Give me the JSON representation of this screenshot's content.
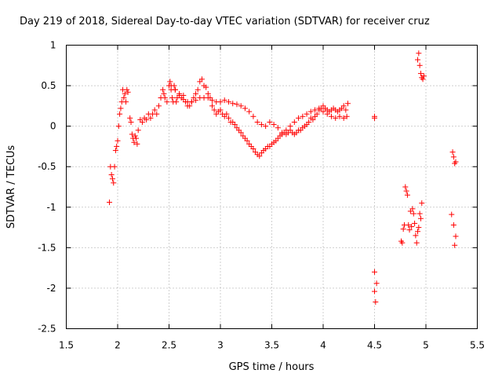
{
  "chart_data": {
    "type": "scatter",
    "title": "Day 219 of 2018, Sidereal Day-to-day VTEC variation (SDTVAR) for receiver cruz",
    "xlabel": "GPS time / hours",
    "ylabel": "SDTVAR / TECUs",
    "xlim": [
      1.5,
      5.5
    ],
    "ylim": [
      -2.5,
      1
    ],
    "xticks": [
      "1.5",
      "2",
      "2.5",
      "3",
      "3.5",
      "4",
      "4.5",
      "5",
      "5.5"
    ],
    "yticks": [
      "1",
      "0.5",
      "0",
      "-0.5",
      "-1",
      "-1.5",
      "-2",
      "-2.5"
    ],
    "grid": true,
    "marker": "+",
    "color": "#ff0000",
    "series": [
      {
        "name": "cruz",
        "points": [
          [
            1.92,
            -0.94
          ],
          [
            1.93,
            -0.5
          ],
          [
            1.94,
            -0.6
          ],
          [
            1.95,
            -0.65
          ],
          [
            1.96,
            -0.7
          ],
          [
            1.97,
            -0.5
          ],
          [
            1.98,
            -0.3
          ],
          [
            1.99,
            -0.25
          ],
          [
            2.0,
            -0.18
          ],
          [
            2.01,
            0.0
          ],
          [
            2.02,
            0.15
          ],
          [
            2.03,
            0.22
          ],
          [
            2.04,
            0.3
          ],
          [
            2.05,
            0.45
          ],
          [
            2.06,
            0.35
          ],
          [
            2.07,
            0.4
          ],
          [
            2.08,
            0.3
          ],
          [
            2.09,
            0.45
          ],
          [
            2.1,
            0.42
          ],
          [
            2.12,
            0.1
          ],
          [
            2.13,
            0.05
          ],
          [
            2.14,
            -0.1
          ],
          [
            2.15,
            -0.15
          ],
          [
            2.16,
            -0.2
          ],
          [
            2.17,
            -0.12
          ],
          [
            2.18,
            -0.15
          ],
          [
            2.19,
            -0.22
          ],
          [
            2.2,
            -0.05
          ],
          [
            2.22,
            0.08
          ],
          [
            2.24,
            0.05
          ],
          [
            2.26,
            0.1
          ],
          [
            2.28,
            0.08
          ],
          [
            2.3,
            0.15
          ],
          [
            2.32,
            0.1
          ],
          [
            2.34,
            0.15
          ],
          [
            2.36,
            0.2
          ],
          [
            2.38,
            0.15
          ],
          [
            2.4,
            0.25
          ],
          [
            2.42,
            0.35
          ],
          [
            2.44,
            0.45
          ],
          [
            2.45,
            0.4
          ],
          [
            2.46,
            0.35
          ],
          [
            2.48,
            0.3
          ],
          [
            2.5,
            0.5
          ],
          [
            2.51,
            0.55
          ],
          [
            2.52,
            0.45
          ],
          [
            2.53,
            0.35
          ],
          [
            2.54,
            0.3
          ],
          [
            2.55,
            0.5
          ],
          [
            2.56,
            0.45
          ],
          [
            2.57,
            0.3
          ],
          [
            2.58,
            0.35
          ],
          [
            2.6,
            0.4
          ],
          [
            2.62,
            0.35
          ],
          [
            2.64,
            0.38
          ],
          [
            2.66,
            0.3
          ],
          [
            2.68,
            0.25
          ],
          [
            2.7,
            0.25
          ],
          [
            2.72,
            0.3
          ],
          [
            2.74,
            0.35
          ],
          [
            2.76,
            0.4
          ],
          [
            2.78,
            0.45
          ],
          [
            2.8,
            0.55
          ],
          [
            2.82,
            0.58
          ],
          [
            2.84,
            0.5
          ],
          [
            2.86,
            0.48
          ],
          [
            2.88,
            0.4
          ],
          [
            2.9,
            0.35
          ],
          [
            2.92,
            0.25
          ],
          [
            2.94,
            0.2
          ],
          [
            2.96,
            0.15
          ],
          [
            2.98,
            0.18
          ],
          [
            3.0,
            0.2
          ],
          [
            3.02,
            0.15
          ],
          [
            3.04,
            0.12
          ],
          [
            3.06,
            0.15
          ],
          [
            3.08,
            0.1
          ],
          [
            3.1,
            0.05
          ],
          [
            3.12,
            0.05
          ],
          [
            3.14,
            0.02
          ],
          [
            3.16,
            -0.02
          ],
          [
            3.18,
            -0.05
          ],
          [
            3.2,
            -0.08
          ],
          [
            3.22,
            -0.12
          ],
          [
            3.24,
            -0.15
          ],
          [
            3.26,
            -0.18
          ],
          [
            3.28,
            -0.22
          ],
          [
            3.3,
            -0.25
          ],
          [
            3.32,
            -0.28
          ],
          [
            3.34,
            -0.32
          ],
          [
            3.36,
            -0.35
          ],
          [
            3.38,
            -0.37
          ],
          [
            3.4,
            -0.33
          ],
          [
            3.42,
            -0.3
          ],
          [
            3.44,
            -0.28
          ],
          [
            3.46,
            -0.25
          ],
          [
            3.48,
            -0.25
          ],
          [
            3.5,
            -0.22
          ],
          [
            3.52,
            -0.2
          ],
          [
            3.54,
            -0.18
          ],
          [
            3.56,
            -0.15
          ],
          [
            3.58,
            -0.12
          ],
          [
            3.6,
            -0.1
          ],
          [
            3.62,
            -0.08
          ],
          [
            3.64,
            -0.1
          ],
          [
            3.66,
            -0.08
          ],
          [
            3.68,
            -0.05
          ],
          [
            3.7,
            -0.08
          ],
          [
            3.72,
            -0.1
          ],
          [
            3.74,
            -0.08
          ],
          [
            3.76,
            -0.05
          ],
          [
            3.78,
            -0.05
          ],
          [
            3.8,
            -0.02
          ],
          [
            3.82,
            0.0
          ],
          [
            3.84,
            0.02
          ],
          [
            3.86,
            0.05
          ],
          [
            3.88,
            0.1
          ],
          [
            3.9,
            0.08
          ],
          [
            3.92,
            0.12
          ],
          [
            3.94,
            0.15
          ],
          [
            3.96,
            0.2
          ],
          [
            3.98,
            0.22
          ],
          [
            4.0,
            0.25
          ],
          [
            4.02,
            0.22
          ],
          [
            4.04,
            0.2
          ],
          [
            4.06,
            0.18
          ],
          [
            4.08,
            0.2
          ],
          [
            4.1,
            0.22
          ],
          [
            4.12,
            0.2
          ],
          [
            4.14,
            0.18
          ],
          [
            4.16,
            0.2
          ],
          [
            4.18,
            0.22
          ],
          [
            4.2,
            0.25
          ],
          [
            4.22,
            0.2
          ],
          [
            4.24,
            0.28
          ],
          [
            2.52,
            0.5
          ],
          [
            2.56,
            0.45
          ],
          [
            2.6,
            0.38
          ],
          [
            2.64,
            0.33
          ],
          [
            2.68,
            0.3
          ],
          [
            2.72,
            0.3
          ],
          [
            2.76,
            0.32
          ],
          [
            2.8,
            0.35
          ],
          [
            2.84,
            0.35
          ],
          [
            2.88,
            0.35
          ],
          [
            2.92,
            0.32
          ],
          [
            2.96,
            0.3
          ],
          [
            3.0,
            0.3
          ],
          [
            3.04,
            0.32
          ],
          [
            3.08,
            0.3
          ],
          [
            3.12,
            0.28
          ],
          [
            3.16,
            0.27
          ],
          [
            3.2,
            0.25
          ],
          [
            3.24,
            0.22
          ],
          [
            3.28,
            0.18
          ],
          [
            3.32,
            0.12
          ],
          [
            3.36,
            0.05
          ],
          [
            3.4,
            0.02
          ],
          [
            3.44,
            0.0
          ],
          [
            3.48,
            0.05
          ],
          [
            3.52,
            0.02
          ],
          [
            3.56,
            -0.02
          ],
          [
            3.6,
            -0.08
          ],
          [
            3.64,
            -0.05
          ],
          [
            3.68,
            0.0
          ],
          [
            3.72,
            0.05
          ],
          [
            3.76,
            0.1
          ],
          [
            3.8,
            0.12
          ],
          [
            3.84,
            0.15
          ],
          [
            3.88,
            0.18
          ],
          [
            3.92,
            0.2
          ],
          [
            3.96,
            0.22
          ],
          [
            4.0,
            0.18
          ],
          [
            4.04,
            0.15
          ],
          [
            4.08,
            0.12
          ],
          [
            4.12,
            0.1
          ],
          [
            4.16,
            0.12
          ],
          [
            4.2,
            0.1
          ],
          [
            4.23,
            0.12
          ],
          [
            4.5,
            0.1
          ],
          [
            4.5,
            0.12
          ],
          [
            4.5,
            -1.8
          ],
          [
            4.5,
            -2.04
          ],
          [
            4.51,
            -2.17
          ],
          [
            4.52,
            -1.94
          ],
          [
            4.76,
            -1.42
          ],
          [
            4.77,
            -1.44
          ],
          [
            4.78,
            -1.27
          ],
          [
            4.79,
            -1.22
          ],
          [
            4.8,
            -0.75
          ],
          [
            4.81,
            -0.8
          ],
          [
            4.82,
            -0.85
          ],
          [
            4.83,
            -1.22
          ],
          [
            4.84,
            -1.28
          ],
          [
            4.85,
            -1.05
          ],
          [
            4.86,
            -1.24
          ],
          [
            4.87,
            -1.02
          ],
          [
            4.88,
            -1.08
          ],
          [
            4.89,
            -1.2
          ],
          [
            4.9,
            -1.35
          ],
          [
            4.91,
            -1.44
          ],
          [
            4.92,
            -1.3
          ],
          [
            4.93,
            -1.25
          ],
          [
            4.94,
            -1.08
          ],
          [
            4.95,
            -1.14
          ],
          [
            4.96,
            -0.95
          ],
          [
            4.92,
            0.82
          ],
          [
            4.93,
            0.9
          ],
          [
            4.94,
            0.75
          ],
          [
            4.95,
            0.65
          ],
          [
            4.96,
            0.6
          ],
          [
            4.97,
            0.58
          ],
          [
            4.98,
            0.62
          ],
          [
            5.25,
            -1.09
          ],
          [
            5.26,
            -0.32
          ],
          [
            5.27,
            -0.38
          ],
          [
            5.28,
            -0.46
          ],
          [
            5.27,
            -1.22
          ],
          [
            5.29,
            -1.36
          ],
          [
            5.28,
            -1.47
          ],
          [
            5.29,
            -0.44
          ]
        ]
      }
    ]
  }
}
